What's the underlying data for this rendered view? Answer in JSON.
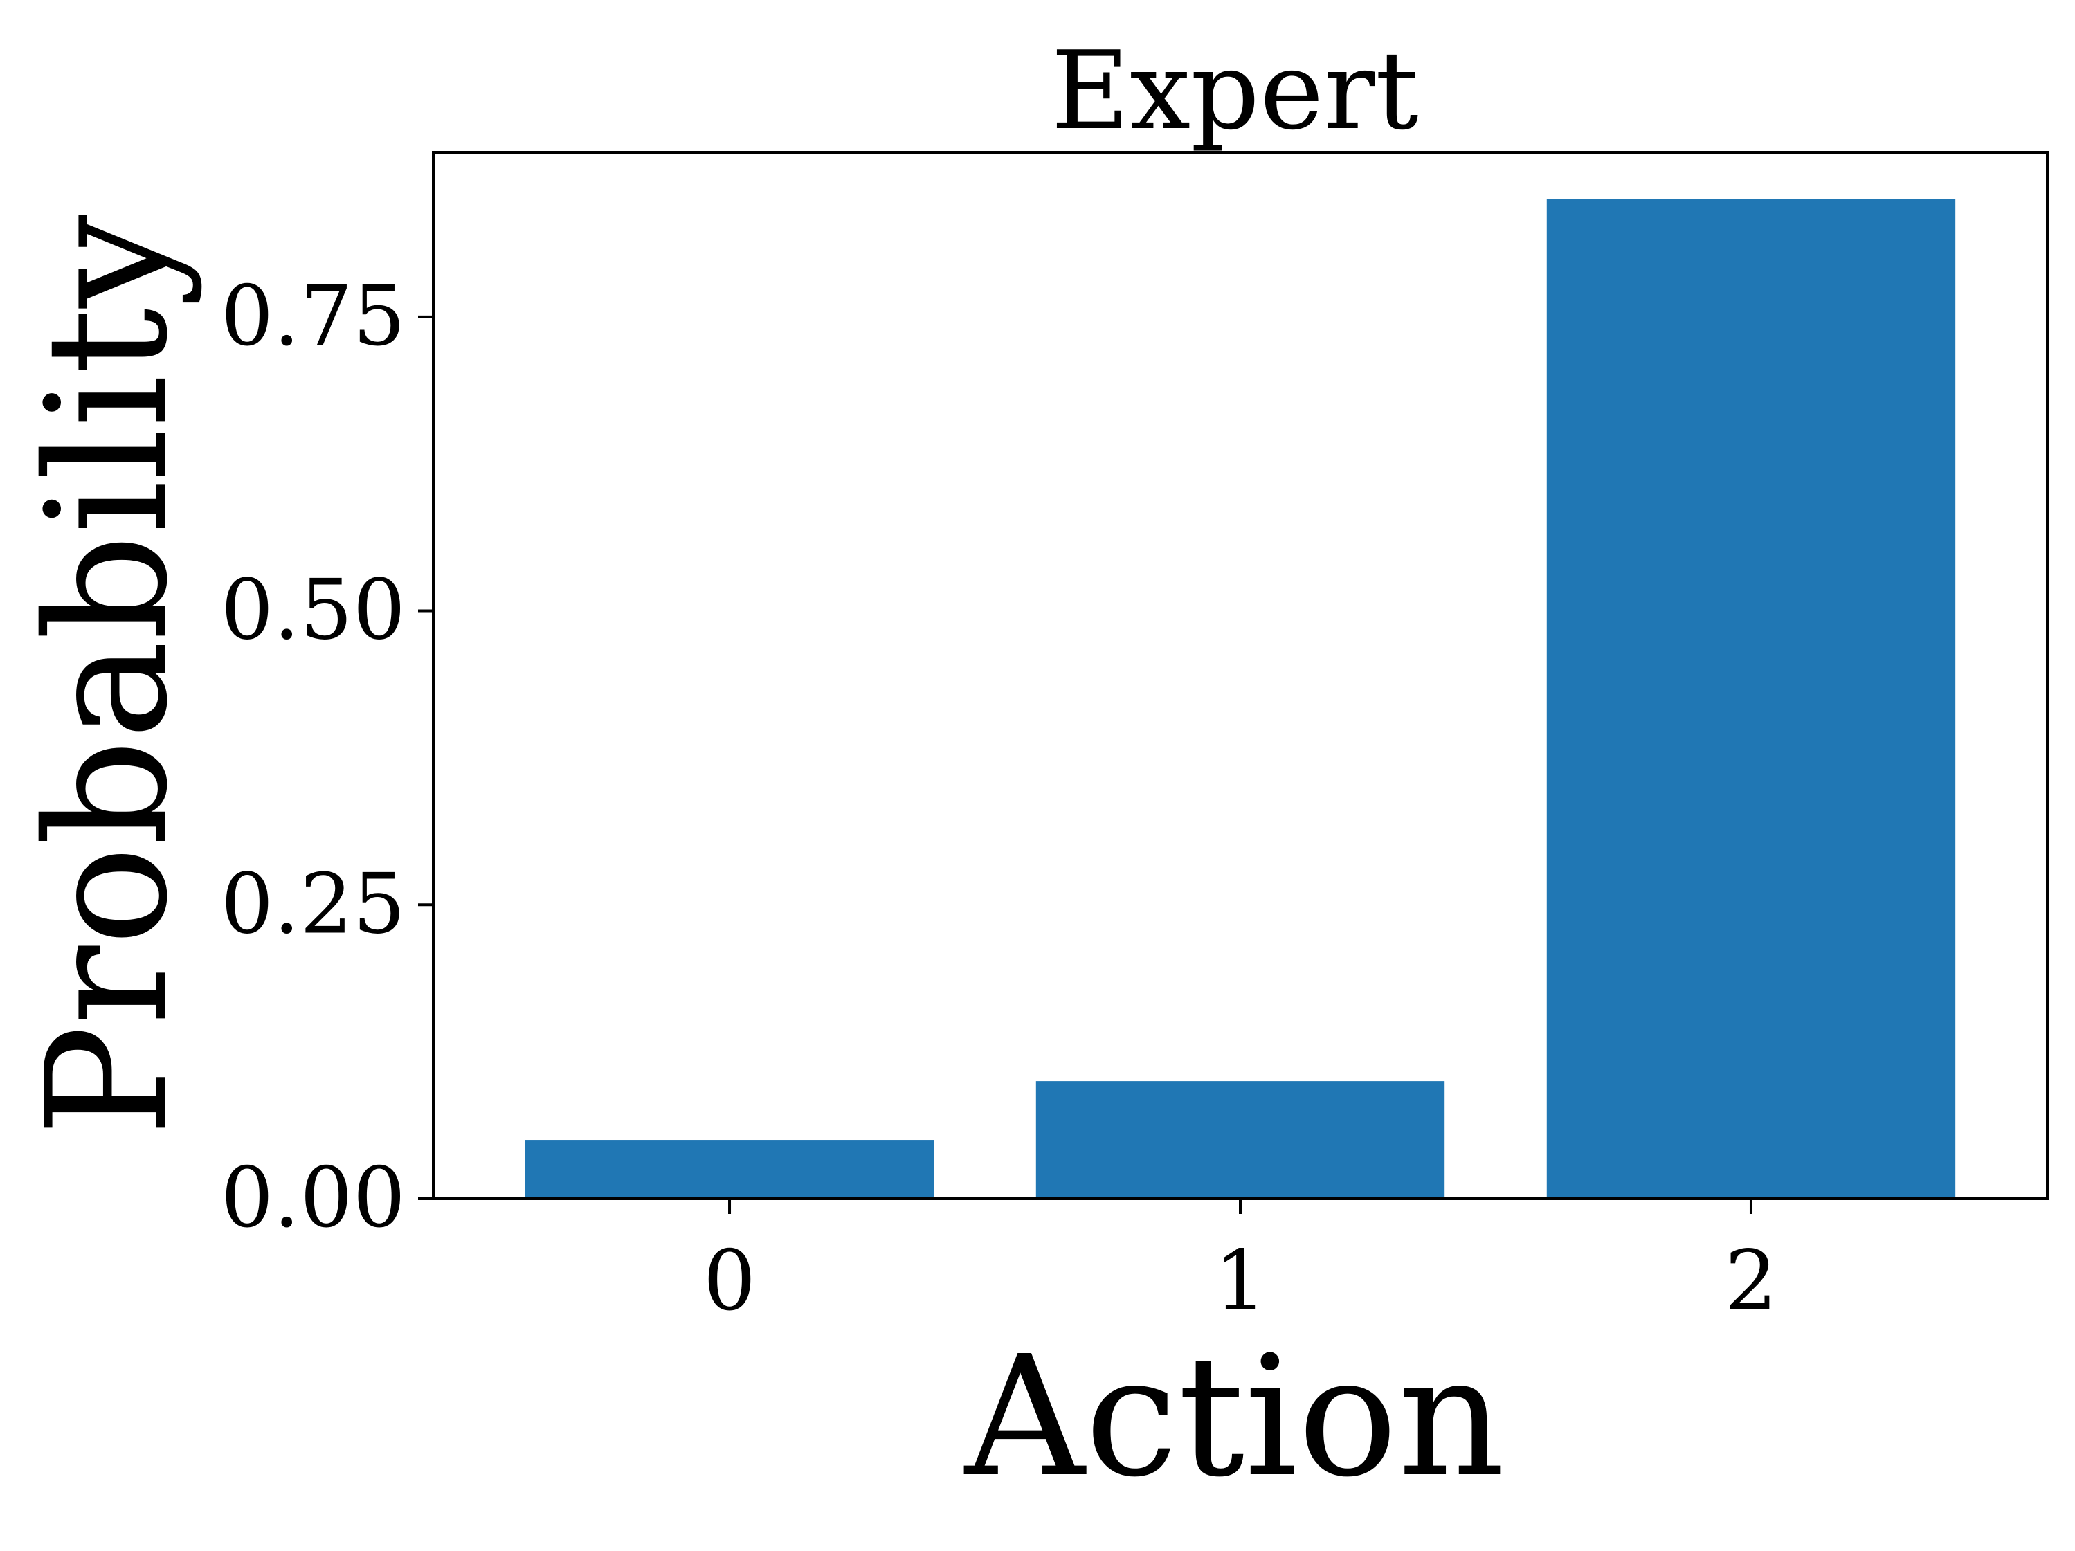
{
  "chart_data": {
    "type": "bar",
    "title": "Expert",
    "xlabel": "Action",
    "ylabel": "Probability",
    "categories": [
      "0",
      "1",
      "2"
    ],
    "values": [
      0.05,
      0.1,
      0.85
    ],
    "ylim": [
      0,
      0.89
    ],
    "yticks": [
      0.0,
      0.25,
      0.5,
      0.75
    ],
    "ytick_labels": [
      "0.00",
      "0.25",
      "0.50",
      "0.75"
    ],
    "grid": false,
    "legend": "none",
    "bar_color": "#2077b4"
  }
}
